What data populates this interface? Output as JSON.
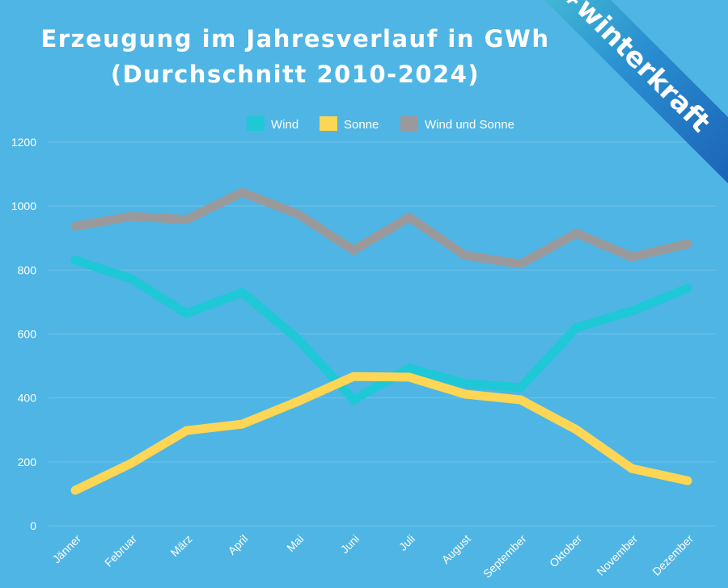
{
  "chart_data": {
    "type": "line",
    "title": "Erzeugung im Jahresverlauf in GWh",
    "subtitle": "(Durchschnitt 2010-2024)",
    "categories": [
      "Jänner",
      "Februar",
      "März",
      "April",
      "Mai",
      "Juni",
      "Juli",
      "August",
      "September",
      "Oktober",
      "November",
      "Dezember"
    ],
    "yticks": [
      "0",
      "200",
      "400",
      "600",
      "800",
      "1000",
      "1200"
    ],
    "ylim": [
      0,
      1200
    ],
    "grid": true,
    "legend_placement": "top",
    "series": [
      {
        "name": "Wind",
        "color": "#1ec8d6",
        "values": [
          831,
          773,
          664,
          730,
          584,
          394,
          493,
          445,
          432,
          619,
          672,
          743
        ]
      },
      {
        "name": "Sonne",
        "color": "#fcd654",
        "values": [
          111,
          195,
          298,
          318,
          389,
          467,
          465,
          412,
          394,
          301,
          179,
          141
        ]
      },
      {
        "name": "Wind und Sonne",
        "color": "#9a9a9c",
        "values": [
          937,
          968,
          958,
          1043,
          975,
          862,
          965,
          846,
          819,
          915,
          841,
          882
        ]
      }
    ]
  },
  "badge": {
    "text": "#winterkraft"
  },
  "colors": {
    "background": "#4fb5e4"
  }
}
